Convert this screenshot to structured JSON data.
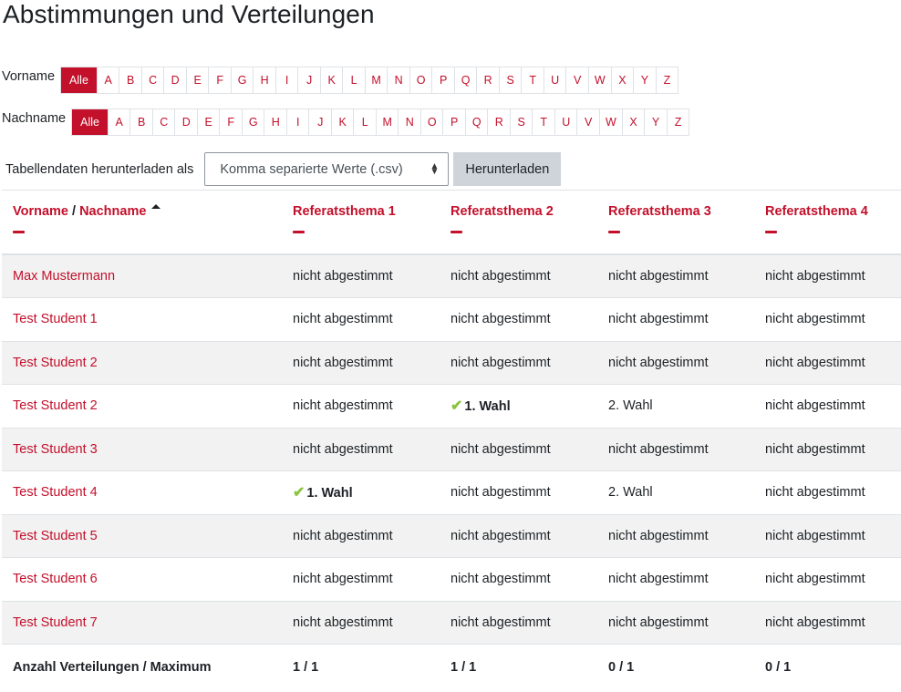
{
  "page": {
    "title": "Abstimmungen und Verteilungen"
  },
  "initials": {
    "firstname_label": "Vorname",
    "lastname_label": "Nachname",
    "all_label": "Alle",
    "letters": [
      "A",
      "B",
      "C",
      "D",
      "E",
      "F",
      "G",
      "H",
      "I",
      "J",
      "K",
      "L",
      "M",
      "N",
      "O",
      "P",
      "Q",
      "R",
      "S",
      "T",
      "U",
      "V",
      "W",
      "X",
      "Y",
      "Z"
    ],
    "firstname_selected": "Alle",
    "lastname_selected": "Alle"
  },
  "download": {
    "label": "Tabellendaten herunterladen als",
    "format_selected": "Komma separierte Werte (.csv)",
    "button_label": "Herunterladen"
  },
  "table": {
    "headers": {
      "firstname": "Vorname",
      "separator": " / ",
      "lastname": "Nachname",
      "sort": "ascending",
      "topics": [
        "Referatsthema 1",
        "Referatsthema 2",
        "Referatsthema 3",
        "Referatsthema 4"
      ]
    },
    "rows": [
      {
        "name": "Max Mustermann",
        "cells": [
          {
            "text": "nicht abgestimmt"
          },
          {
            "text": "nicht abgestimmt"
          },
          {
            "text": "nicht abgestimmt"
          },
          {
            "text": "nicht abgestimmt"
          }
        ]
      },
      {
        "name": "Test Student 1",
        "cells": [
          {
            "text": "nicht abgestimmt"
          },
          {
            "text": "nicht abgestimmt"
          },
          {
            "text": "nicht abgestimmt"
          },
          {
            "text": "nicht abgestimmt"
          }
        ]
      },
      {
        "name": "Test Student 2",
        "cells": [
          {
            "text": "nicht abgestimmt"
          },
          {
            "text": "nicht abgestimmt"
          },
          {
            "text": "nicht abgestimmt"
          },
          {
            "text": "nicht abgestimmt"
          }
        ]
      },
      {
        "name": "Test Student 2",
        "cells": [
          {
            "text": "nicht abgestimmt"
          },
          {
            "text": "1. Wahl",
            "allocated": true
          },
          {
            "text": "2. Wahl"
          },
          {
            "text": "nicht abgestimmt"
          }
        ]
      },
      {
        "name": "Test Student 3",
        "cells": [
          {
            "text": "nicht abgestimmt"
          },
          {
            "text": "nicht abgestimmt"
          },
          {
            "text": "nicht abgestimmt"
          },
          {
            "text": "nicht abgestimmt"
          }
        ]
      },
      {
        "name": "Test Student 4",
        "cells": [
          {
            "text": "1. Wahl",
            "allocated": true
          },
          {
            "text": "nicht abgestimmt"
          },
          {
            "text": "2. Wahl"
          },
          {
            "text": "nicht abgestimmt"
          }
        ]
      },
      {
        "name": "Test Student 5",
        "cells": [
          {
            "text": "nicht abgestimmt"
          },
          {
            "text": "nicht abgestimmt"
          },
          {
            "text": "nicht abgestimmt"
          },
          {
            "text": "nicht abgestimmt"
          }
        ]
      },
      {
        "name": "Test Student 6",
        "cells": [
          {
            "text": "nicht abgestimmt"
          },
          {
            "text": "nicht abgestimmt"
          },
          {
            "text": "nicht abgestimmt"
          },
          {
            "text": "nicht abgestimmt"
          }
        ]
      },
      {
        "name": "Test Student 7",
        "cells": [
          {
            "text": "nicht abgestimmt"
          },
          {
            "text": "nicht abgestimmt"
          },
          {
            "text": "nicht abgestimmt"
          },
          {
            "text": "nicht abgestimmt"
          }
        ]
      }
    ],
    "summary": {
      "label": "Anzahl Verteilungen / Maximum",
      "values": [
        "1 / 1",
        "1 / 1",
        "0 / 1",
        "0 / 1"
      ]
    }
  },
  "icons": {
    "check": "✔",
    "sort_up": "triangle-up",
    "select_arrows": "▴▾"
  },
  "colors": {
    "accent": "#c3102b",
    "check": "#8cc43f",
    "stripe": "#f2f2f2",
    "border": "#dee2e6",
    "button_bg": "#ced4da"
  }
}
